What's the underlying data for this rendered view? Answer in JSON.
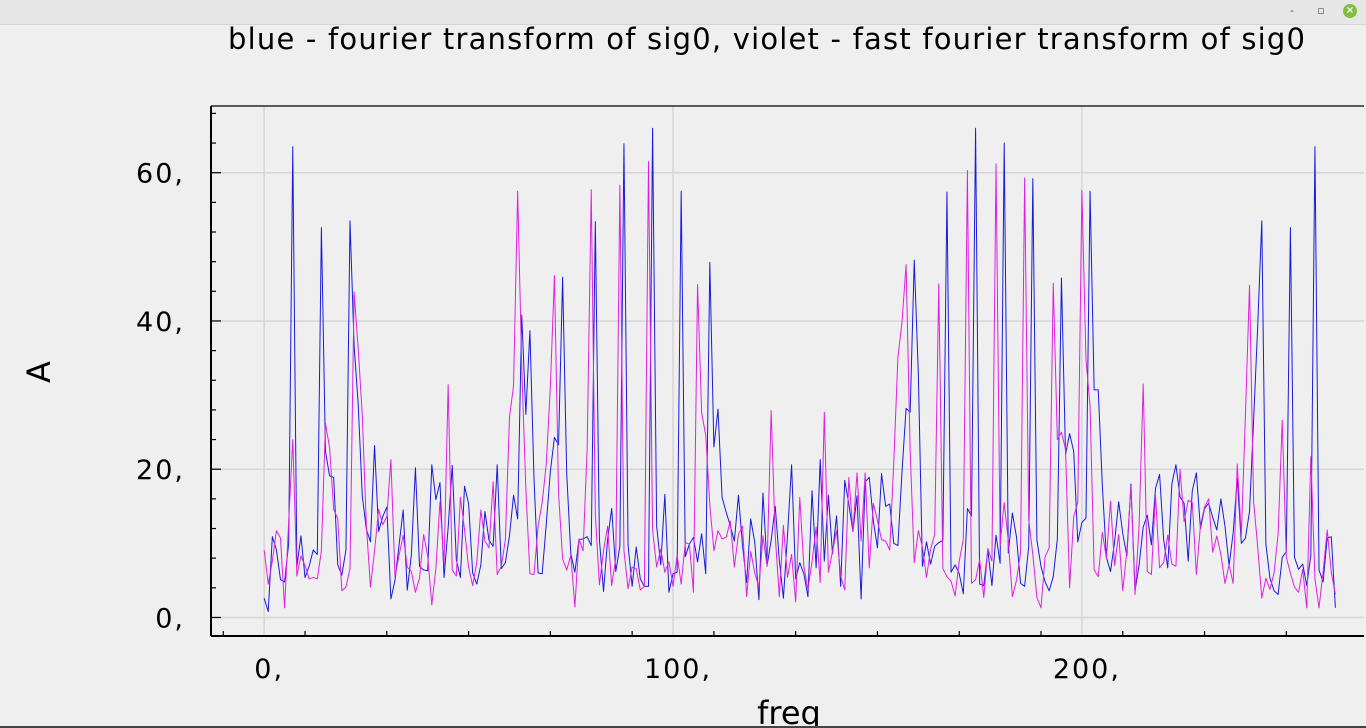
{
  "window": {
    "minimize_glyph": "-",
    "restore_glyph": "▫",
    "close_glyph": "×"
  },
  "colors": {
    "fourier": "#1a1adc",
    "fft": "#e020e0",
    "grid": "#d6d6d6",
    "background": "#efefef"
  },
  "chart_data": {
    "type": "line",
    "title": "blue - fourier transform of sig0, violet - fast fourier transform of sig0",
    "xlabel": "freq",
    "ylabel": "A",
    "xlim": [
      -13,
      269
    ],
    "ylim": [
      -2.5,
      69
    ],
    "xticks": [
      0,
      100,
      200
    ],
    "xtick_labels": [
      "0,",
      "100,",
      "200,"
    ],
    "yticks": [
      0,
      20,
      40,
      60
    ],
    "ytick_labels": [
      "0,",
      "20,",
      "40,",
      "60,"
    ],
    "grid": true,
    "series": [
      {
        "color": "#1a1adc",
        "values": [
          2.6,
          0.8,
          10.9,
          9.1,
          5.1,
          4.8,
          10,
          63.5,
          6.9,
          11,
          5.4,
          6.9,
          9.1,
          8.5,
          52.6,
          22.4,
          19.1,
          18.9,
          7.1,
          5.7,
          9.1,
          53.5,
          36.7,
          28.8,
          16.4,
          11.9,
          10.2,
          23.2,
          11.6,
          13.6,
          14.9,
          2.5,
          5,
          9.8,
          14.5,
          3.7,
          8.4,
          20.2,
          6.9,
          6.4,
          6.3,
          20.6,
          15.9,
          18.2,
          5.4,
          12.1,
          20.5,
          7.8,
          5.4,
          17.7,
          15.4,
          6,
          4.5,
          7.1,
          14.3,
          10.4,
          9.6,
          20.6,
          6.6,
          7.4,
          11,
          16.5,
          13.3,
          40.8,
          27.4,
          38.7,
          18.7,
          6,
          5.9,
          12.6,
          19.7,
          24.3,
          23.3,
          45.9,
          19.4,
          8.6,
          6.1,
          10.5,
          10.6,
          10.9,
          9.7,
          53.4,
          10.5,
          3.5,
          10.5,
          14.7,
          6.2,
          9.6,
          63.9,
          9.8,
          4.2,
          9.5,
          5.2,
          4.2,
          4.2,
          66,
          12.3,
          7.1,
          16.6,
          3.4,
          5.9,
          6.1,
          57.5,
          8.2,
          9.9,
          10.8,
          7.5,
          11.3,
          5.9,
          47.9,
          23,
          28.1,
          16.2,
          14.2,
          12.4,
          10.3,
          16.5,
          9.7,
          4.7,
          13.3,
          10.1,
          2.4,
          16.8,
          7,
          10.4,
          15,
          7.7,
          2.6,
          11.1,
          20.6,
          5.2,
          7.4,
          5.9,
          2.8,
          17.1,
          6.7,
          21.3,
          7.6,
          16.5,
          8.6,
          13.7,
          4.2,
          18.5,
          15.3,
          11.6,
          16.4,
          2.5,
          18.3,
          18.9,
          13,
          9.4,
          19.4,
          15,
          15.3,
          10,
          9.7,
          19.6,
          28.2,
          27.7,
          48.2,
          32.9,
          6.9,
          10.2,
          7.2,
          9.6,
          10.1,
          10.4,
          57.4,
          6.1,
          7.1,
          5.9,
          3.2,
          14.7,
          13.7,
          66,
          4.5,
          4.3,
          9.1,
          4.3,
          11.1,
          7.3,
          64,
          8.7,
          14.1,
          10.9,
          4.6,
          4.2,
          9.6,
          59.2,
          10.4,
          6.9,
          4.8,
          3.6,
          5.5,
          10.6,
          45.8,
          22,
          24.8,
          22.4,
          10.2,
          12.8,
          13.4,
          57.5,
          30.7,
          30.7,
          17.8,
          8.1,
          6.2,
          10.2,
          15.6,
          11.3,
          8.3,
          18,
          3.6,
          7.1,
          12.2,
          13.8,
          9.8,
          17.4,
          19.3,
          10.5,
          6.7,
          18,
          20.6,
          16.3,
          15.4,
          7.6,
          17.1,
          19.5,
          12,
          14.7,
          15.4,
          13.5,
          11.8,
          16,
          12.3,
          7,
          11.4,
          18.8,
          10,
          10.7,
          14.3,
          26.6,
          39.3,
          53.5,
          9.9,
          5.3,
          3.6,
          3.1,
          8.1,
          8.9,
          52.6,
          8.1,
          6.5,
          7.2,
          4.3,
          8.4,
          63.5,
          6.4,
          4.8,
          10.7,
          10.9,
          1.3
        ]
      },
      {
        "color": "#e020e0",
        "values": [
          9.1,
          4.5,
          7.6,
          11.7,
          10.7,
          1.3,
          12.9,
          24,
          5.6,
          8.3,
          7,
          5.2,
          5.4,
          5.2,
          9,
          26.2,
          22.9,
          14.6,
          13.3,
          3.6,
          4.1,
          6.6,
          43.9,
          36.3,
          27.3,
          12.4,
          4.1,
          9,
          14.6,
          12.5,
          13.6,
          21.3,
          5.5,
          8.4,
          11.1,
          6.8,
          6.2,
          3.4,
          5.3,
          11.2,
          8.3,
          1.7,
          6.6,
          15.6,
          7.1,
          31.4,
          6.4,
          5.6,
          16.2,
          11.9,
          6.8,
          4.3,
          7.4,
          14.5,
          10.3,
          9.4,
          18.3,
          5.8,
          6.9,
          10.5,
          27,
          31.3,
          57.5,
          33.7,
          17.4,
          5.9,
          5.8,
          12.3,
          15.5,
          20.7,
          31.2,
          46.1,
          16.8,
          7.9,
          6.4,
          8.4,
          1.4,
          10.6,
          9,
          22.8,
          57.7,
          13.9,
          4.4,
          9,
          12.3,
          4.3,
          8,
          58.3,
          9,
          3.9,
          6.8,
          6.6,
          3.7,
          4.2,
          61.5,
          11.8,
          6.8,
          9.2,
          6.1,
          7.5,
          4.2,
          8.4,
          4.5,
          10.1,
          9.9,
          3.4,
          44.9,
          27.6,
          24.6,
          15.2,
          9,
          11.7,
          10.6,
          10.8,
          13,
          6.8,
          11.2,
          12.3,
          2.8,
          8.9,
          6,
          4.1,
          11,
          6.9,
          27.9,
          11,
          2.8,
          12.4,
          5.4,
          8.5,
          2.1,
          16.2,
          6.9,
          3.8,
          7.5,
          12.2,
          4.7,
          27.7,
          6.1,
          8.9,
          11.7,
          5.6,
          3.7,
          18.9,
          11.7,
          19.5,
          10.3,
          19.5,
          6.7,
          15.4,
          13.1,
          10.5,
          10.3,
          9.1,
          21,
          35.1,
          39.8,
          47.6,
          22.6,
          7.4,
          11.7,
          9.5,
          5.4,
          9.2,
          11.2,
          45,
          6.6,
          5.5,
          4.9,
          2.9,
          7.6,
          10.5,
          60.3,
          4.6,
          5.1,
          7.8,
          2.7,
          9.3,
          7.6,
          61.2,
          9.8,
          15.5,
          10.3,
          2.8,
          5,
          8.7,
          59.3,
          13.2,
          8.5,
          2.7,
          1.3,
          8.2,
          9.4,
          45.1,
          24,
          25,
          22.7,
          4,
          13.6,
          15.6,
          57.6,
          34.8,
          28.5,
          6.4,
          5.5,
          11.5,
          8,
          15.7,
          7,
          11.2,
          3.6,
          9,
          17.7,
          3.1,
          12.5,
          31.5,
          6.2,
          5.8,
          16.5,
          6.7,
          7.4,
          11.1,
          7.2,
          6.9,
          20,
          12.9,
          15.8,
          15.5,
          5.8,
          12.4,
          14.9,
          16,
          8.8,
          11,
          8.5,
          4.6,
          7.1,
          4.6,
          20.7,
          11.1,
          27.3,
          44.8,
          15.6,
          9.5,
          2.6,
          5.3,
          3.8,
          6,
          11.3,
          26.6,
          8.1,
          6,
          4.1,
          3.4,
          6.5,
          1.3,
          21.7,
          5.2,
          1.3,
          6.2,
          11.8,
          6.1,
          3.1
        ]
      }
    ]
  }
}
